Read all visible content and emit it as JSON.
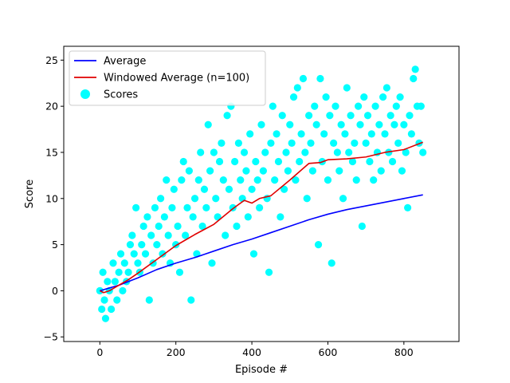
{
  "chart_data": {
    "type": "line+scatter",
    "xlabel": "Episode #",
    "ylabel": "Score",
    "xlim": [
      -95,
      945
    ],
    "ylim": [
      -5.5,
      26.5
    ],
    "x_ticks": [
      0,
      200,
      400,
      600,
      800
    ],
    "y_ticks": [
      -5,
      0,
      5,
      10,
      15,
      20,
      25
    ],
    "grid": false,
    "legend_position": "top-left",
    "colors": {
      "average": "#0000ff",
      "windowed_average": "#e00000",
      "scores": "#00ffff"
    },
    "series": [
      {
        "name": "Average",
        "type": "line",
        "x": [
          0,
          25,
          50,
          75,
          100,
          150,
          200,
          250,
          300,
          350,
          400,
          450,
          500,
          550,
          600,
          650,
          700,
          750,
          800,
          850
        ],
        "y": [
          0,
          0.3,
          0.6,
          1.0,
          1.4,
          2.3,
          3.0,
          3.6,
          4.3,
          5.0,
          5.6,
          6.3,
          7.0,
          7.7,
          8.3,
          8.8,
          9.2,
          9.6,
          10.0,
          10.4
        ]
      },
      {
        "name": "Windowed Average (n=100)",
        "type": "line",
        "x": [
          0,
          10,
          25,
          50,
          75,
          100,
          150,
          200,
          250,
          300,
          350,
          380,
          400,
          420,
          450,
          500,
          550,
          580,
          600,
          650,
          700,
          750,
          800,
          850
        ],
        "y": [
          0,
          -0.2,
          0,
          0.6,
          1.2,
          1.9,
          3.4,
          4.9,
          6.1,
          7.2,
          8.9,
          9.8,
          9.5,
          10.0,
          10.3,
          12.0,
          13.8,
          13.9,
          14.2,
          14.3,
          14.5,
          15.0,
          15.3,
          16.1
        ]
      },
      {
        "name": "Scores",
        "type": "scatter",
        "points": [
          [
            0,
            0
          ],
          [
            5,
            -2
          ],
          [
            8,
            2
          ],
          [
            12,
            -1
          ],
          [
            15,
            -3
          ],
          [
            20,
            1
          ],
          [
            25,
            0
          ],
          [
            30,
            -2
          ],
          [
            35,
            3
          ],
          [
            40,
            1
          ],
          [
            45,
            -1
          ],
          [
            50,
            2
          ],
          [
            55,
            4
          ],
          [
            60,
            0
          ],
          [
            65,
            3
          ],
          [
            70,
            1
          ],
          [
            75,
            2
          ],
          [
            80,
            5
          ],
          [
            85,
            6
          ],
          [
            90,
            4
          ],
          [
            95,
            9
          ],
          [
            100,
            3
          ],
          [
            105,
            2
          ],
          [
            110,
            5
          ],
          [
            115,
            7
          ],
          [
            120,
            4
          ],
          [
            125,
            8
          ],
          [
            130,
            -1
          ],
          [
            135,
            6
          ],
          [
            140,
            3
          ],
          [
            145,
            9
          ],
          [
            150,
            5
          ],
          [
            155,
            7
          ],
          [
            160,
            10
          ],
          [
            165,
            4
          ],
          [
            170,
            8
          ],
          [
            175,
            12
          ],
          [
            180,
            6
          ],
          [
            185,
            3
          ],
          [
            190,
            9
          ],
          [
            195,
            11
          ],
          [
            200,
            5
          ],
          [
            205,
            7
          ],
          [
            210,
            2
          ],
          [
            215,
            12
          ],
          [
            220,
            14
          ],
          [
            225,
            6
          ],
          [
            230,
            9
          ],
          [
            235,
            13
          ],
          [
            240,
            -1
          ],
          [
            245,
            8
          ],
          [
            250,
            10
          ],
          [
            255,
            4
          ],
          [
            260,
            12
          ],
          [
            265,
            15
          ],
          [
            270,
            7
          ],
          [
            275,
            11
          ],
          [
            280,
            9
          ],
          [
            285,
            18
          ],
          [
            290,
            13
          ],
          [
            295,
            3
          ],
          [
            300,
            15
          ],
          [
            305,
            10
          ],
          [
            310,
            8
          ],
          [
            315,
            14
          ],
          [
            320,
            16
          ],
          [
            325,
            12
          ],
          [
            330,
            6
          ],
          [
            335,
            19
          ],
          [
            340,
            11
          ],
          [
            345,
            20
          ],
          [
            350,
            9
          ],
          [
            355,
            14
          ],
          [
            360,
            7
          ],
          [
            365,
            16
          ],
          [
            370,
            12
          ],
          [
            375,
            10
          ],
          [
            380,
            15
          ],
          [
            385,
            13
          ],
          [
            390,
            8
          ],
          [
            395,
            17
          ],
          [
            400,
            11
          ],
          [
            405,
            4
          ],
          [
            410,
            14
          ],
          [
            415,
            12
          ],
          [
            420,
            9
          ],
          [
            425,
            18
          ],
          [
            430,
            13
          ],
          [
            435,
            15
          ],
          [
            440,
            10
          ],
          [
            445,
            2
          ],
          [
            450,
            16
          ],
          [
            455,
            20
          ],
          [
            460,
            12
          ],
          [
            465,
            17
          ],
          [
            470,
            14
          ],
          [
            475,
            8
          ],
          [
            480,
            19
          ],
          [
            485,
            11
          ],
          [
            490,
            15
          ],
          [
            495,
            13
          ],
          [
            500,
            18
          ],
          [
            505,
            16
          ],
          [
            510,
            21
          ],
          [
            515,
            12
          ],
          [
            520,
            22
          ],
          [
            525,
            14
          ],
          [
            530,
            17
          ],
          [
            535,
            23
          ],
          [
            540,
            15
          ],
          [
            545,
            10
          ],
          [
            550,
            19
          ],
          [
            555,
            16
          ],
          [
            560,
            13
          ],
          [
            565,
            20
          ],
          [
            570,
            18
          ],
          [
            575,
            5
          ],
          [
            580,
            23
          ],
          [
            585,
            14
          ],
          [
            590,
            17
          ],
          [
            595,
            21
          ],
          [
            600,
            12
          ],
          [
            605,
            19
          ],
          [
            610,
            3
          ],
          [
            615,
            16
          ],
          [
            620,
            20
          ],
          [
            625,
            15
          ],
          [
            630,
            13
          ],
          [
            635,
            18
          ],
          [
            640,
            10
          ],
          [
            645,
            17
          ],
          [
            650,
            22
          ],
          [
            655,
            15
          ],
          [
            660,
            19
          ],
          [
            665,
            14
          ],
          [
            670,
            16
          ],
          [
            675,
            12
          ],
          [
            680,
            20
          ],
          [
            685,
            18
          ],
          [
            690,
            7
          ],
          [
            695,
            21
          ],
          [
            700,
            16
          ],
          [
            705,
            19
          ],
          [
            710,
            14
          ],
          [
            715,
            17
          ],
          [
            720,
            12
          ],
          [
            725,
            20
          ],
          [
            730,
            15
          ],
          [
            735,
            18
          ],
          [
            740,
            13
          ],
          [
            745,
            21
          ],
          [
            750,
            17
          ],
          [
            755,
            22
          ],
          [
            760,
            15
          ],
          [
            765,
            19
          ],
          [
            770,
            14
          ],
          [
            775,
            18
          ],
          [
            780,
            20
          ],
          [
            785,
            16
          ],
          [
            790,
            21
          ],
          [
            795,
            13
          ],
          [
            800,
            18
          ],
          [
            805,
            15
          ],
          [
            810,
            9
          ],
          [
            815,
            19
          ],
          [
            820,
            17
          ],
          [
            825,
            23
          ],
          [
            830,
            24
          ],
          [
            835,
            20
          ],
          [
            840,
            16
          ],
          [
            845,
            20
          ],
          [
            850,
            15
          ]
        ]
      }
    ]
  }
}
